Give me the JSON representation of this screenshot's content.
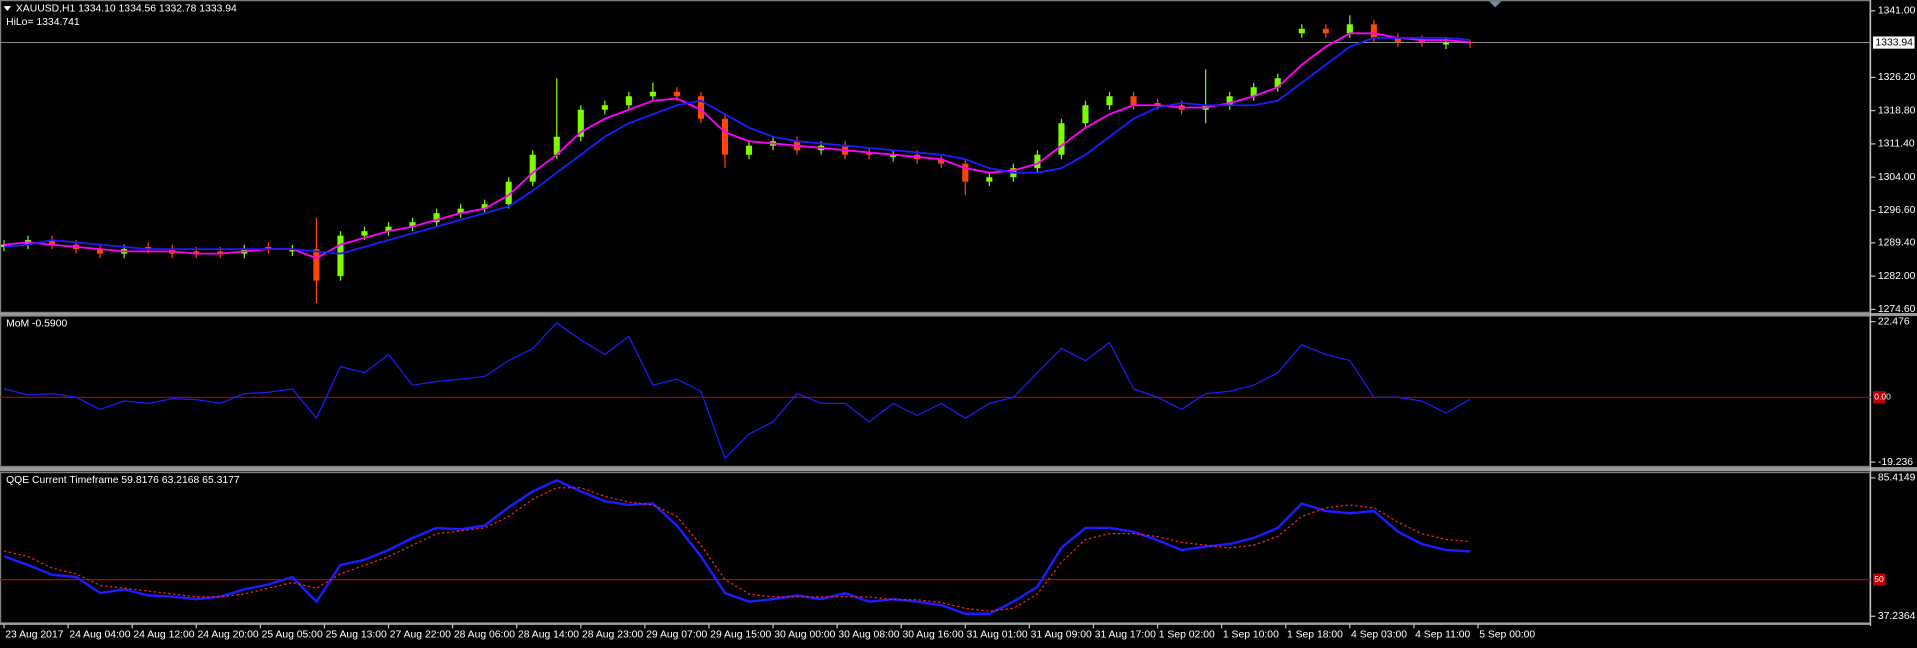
{
  "chart_data": [
    {
      "type": "candlestick",
      "title": "XAUUSD,H1  1334.10 1334.56 1332.78 1333.94",
      "subtitle": "HiLo= 1334.741",
      "up_color": "#7cfc00",
      "down_color": "#ff4500",
      "x": [
        0,
        3,
        6,
        9,
        12,
        15,
        18,
        21,
        24,
        27,
        30,
        33,
        36,
        39,
        42,
        45,
        48,
        51,
        54,
        57,
        60,
        63,
        66,
        69,
        72,
        75,
        78,
        81,
        84,
        87,
        90,
        93,
        96,
        99,
        102,
        105,
        108,
        111,
        114,
        117,
        120,
        123,
        126,
        129,
        132,
        135,
        138,
        141,
        144,
        147,
        150,
        153,
        156,
        159,
        162,
        165,
        168,
        171,
        174,
        177,
        180,
        183
      ],
      "open": [
        1288.5,
        1289,
        1290,
        1289,
        1288,
        1287,
        1288.5,
        1288,
        1287.5,
        1287.5,
        1287,
        1288.5,
        1287.5,
        1288,
        1282,
        1291,
        1292,
        1293,
        1294,
        1296,
        1297,
        1298,
        1303,
        1309,
        1313,
        1319,
        1320,
        1322,
        1323,
        1322,
        1317,
        1309,
        1311,
        1312,
        1310,
        1311,
        1309.5,
        1308.5,
        1309,
        1308,
        1307,
        1303,
        1304,
        1306,
        1309,
        1316,
        1320,
        1322,
        1320.5,
        1320,
        1319,
        1320,
        1322,
        1324,
        1336,
        1337,
        1336,
        1338,
        1335,
        1334.5,
        1333.5,
        1334.1
      ],
      "high": [
        1290,
        1291,
        1291,
        1290,
        1289,
        1289,
        1289.5,
        1289,
        1288.5,
        1288.5,
        1289,
        1289.5,
        1289,
        1295,
        1292,
        1293,
        1294,
        1295,
        1297,
        1298,
        1299,
        1304,
        1310,
        1326,
        1320,
        1321,
        1323,
        1325,
        1324,
        1323,
        1318,
        1312,
        1313,
        1313,
        1312,
        1312,
        1310.5,
        1310,
        1310,
        1309,
        1308,
        1305,
        1307,
        1310,
        1317,
        1321,
        1323,
        1323,
        1321.5,
        1321,
        1328,
        1323,
        1325,
        1327,
        1338,
        1338,
        1340,
        1339,
        1336,
        1335.5,
        1335,
        1334.56
      ],
      "low": [
        1287.5,
        1288,
        1288,
        1287,
        1286,
        1286,
        1287,
        1286,
        1286,
        1286,
        1286,
        1287,
        1286.5,
        1276,
        1281,
        1290,
        1291,
        1292,
        1293,
        1295,
        1296,
        1297,
        1302,
        1308,
        1312,
        1318,
        1319,
        1321,
        1321,
        1316,
        1306,
        1308,
        1310,
        1309,
        1309,
        1308,
        1308,
        1307.5,
        1307,
        1306,
        1300,
        1302,
        1303,
        1305,
        1308,
        1315,
        1319,
        1319,
        1319,
        1318,
        1316,
        1319,
        1321,
        1323,
        1335,
        1335,
        1335,
        1334,
        1333,
        1333,
        1332.5,
        1332.78
      ],
      "close": [
        1289,
        1290,
        1289,
        1288,
        1287,
        1288,
        1288,
        1287,
        1287,
        1287,
        1288,
        1288,
        1288,
        1281,
        1291,
        1292,
        1293,
        1294,
        1296,
        1297,
        1298,
        1303,
        1309,
        1313,
        1319,
        1320,
        1322,
        1323,
        1322,
        1317,
        1309,
        1311,
        1312,
        1310,
        1311,
        1309,
        1309,
        1309,
        1308,
        1307,
        1303,
        1304,
        1306,
        1309,
        1316,
        1320,
        1322,
        1320,
        1320,
        1319,
        1320,
        1322,
        1324,
        1326,
        1337,
        1336,
        1338,
        1335,
        1334,
        1334,
        1334,
        1333.94
      ],
      "overlays": [
        {
          "color": "#ff00ff",
          "values": [
            1289,
            1289.5,
            1289,
            1288.5,
            1288,
            1287.5,
            1287.5,
            1287.5,
            1287,
            1287,
            1287.5,
            1288,
            1288,
            1286,
            1289,
            1290.5,
            1292,
            1293,
            1294.5,
            1296,
            1297,
            1300,
            1305,
            1309,
            1314,
            1317,
            1319,
            1321,
            1321.5,
            1319,
            1314,
            1312,
            1311.5,
            1311,
            1310.5,
            1310,
            1309.5,
            1309,
            1308.5,
            1308,
            1306,
            1305,
            1305.5,
            1307,
            1311,
            1315,
            1318,
            1320,
            1320,
            1319.5,
            1319.5,
            1320.5,
            1322,
            1324,
            1329,
            1333,
            1336,
            1336,
            1335,
            1334.5,
            1334.5,
            1334
          ]
        },
        {
          "color": "#1c1cff",
          "values": [
            1288.5,
            1289,
            1290,
            1289.5,
            1289,
            1288.5,
            1288,
            1288,
            1288,
            1288,
            1288,
            1288,
            1288,
            1287.5,
            1287,
            1288.5,
            1290,
            1291.5,
            1293,
            1294.5,
            1296,
            1297.5,
            1301,
            1305,
            1309,
            1313,
            1316,
            1318,
            1320,
            1321,
            1318,
            1315,
            1313,
            1312,
            1311.5,
            1311,
            1310.5,
            1310,
            1309.5,
            1309,
            1308,
            1306,
            1305,
            1305,
            1306,
            1309,
            1313,
            1317,
            1319.5,
            1320.5,
            1320,
            1320,
            1320,
            1321,
            1325,
            1329,
            1333,
            1335,
            1335,
            1335,
            1335,
            1334.5
          ]
        }
      ],
      "current_price": 1333.94,
      "xlim": [
        -0.5,
        233
      ],
      "ylim": [
        1273.8,
        1343.4
      ],
      "yticks": [
        {
          "value": 1341,
          "label": "1341.00"
        },
        {
          "value": 1326.2,
          "label": "1326.20"
        },
        {
          "value": 1318.8,
          "label": "1318.80"
        },
        {
          "value": 1311.4,
          "label": "1311.40"
        },
        {
          "value": 1304,
          "label": "1304.00"
        },
        {
          "value": 1296.6,
          "label": "1296.60"
        },
        {
          "value": 1289.4,
          "label": "1289.40"
        },
        {
          "value": 1282,
          "label": "1282.00"
        },
        {
          "value": 1274.6,
          "label": "1274.60"
        }
      ]
    },
    {
      "type": "line",
      "title": "MoM  -0.5900",
      "x": [
        0,
        3,
        6,
        9,
        12,
        15,
        18,
        21,
        24,
        27,
        30,
        33,
        36,
        39,
        42,
        45,
        48,
        51,
        54,
        57,
        60,
        63,
        66,
        69,
        72,
        75,
        78,
        81,
        84,
        87,
        90,
        93,
        96,
        99,
        102,
        105,
        108,
        111,
        114,
        117,
        120,
        123,
        126,
        129,
        132,
        135,
        138,
        141,
        144,
        147,
        150,
        153,
        156,
        159,
        162,
        165,
        168,
        171,
        174,
        177,
        180,
        183
      ],
      "series": [
        {
          "color": "#1c1cff",
          "width": 1,
          "style": "solid",
          "values": [
            2.5,
            0.7,
            1.1,
            0,
            -3.6,
            -1.1,
            -1.8,
            -0.4,
            -0.7,
            -1.8,
            1.1,
            1.5,
            2.5,
            -6.2,
            9.1,
            7.3,
            12.7,
            3.6,
            4.7,
            5.4,
            6.2,
            10.9,
            14.5,
            22.1,
            17.0,
            12.7,
            18.1,
            3.6,
            5.4,
            1.8,
            -18.1,
            -10.9,
            -7.3,
            1.1,
            -1.8,
            -1.8,
            -7.3,
            -1.8,
            -5.4,
            -1.8,
            -6.2,
            -1.8,
            0,
            7.3,
            14.5,
            10.9,
            16.3,
            2.5,
            0,
            -3.6,
            1.1,
            1.8,
            3.6,
            7.3,
            15.6,
            12.7,
            10.9,
            0,
            0,
            -1.1,
            -4.7,
            -0.59
          ]
        }
      ],
      "levels": [
        {
          "value": 0,
          "label": "0.00"
        }
      ],
      "level_color": "#c00000",
      "xlim": [
        -0.5,
        233
      ],
      "ylim": [
        -20.7,
        24.3
      ],
      "yticks": [
        22.476,
        -19.236
      ]
    },
    {
      "type": "line",
      "title": "QQE Current Timeframe 59.8176 63.2168 65.3177",
      "x": [
        0,
        3,
        6,
        9,
        12,
        15,
        18,
        21,
        24,
        27,
        30,
        33,
        36,
        39,
        42,
        45,
        48,
        51,
        54,
        57,
        60,
        63,
        66,
        69,
        72,
        75,
        78,
        81,
        84,
        87,
        90,
        93,
        96,
        99,
        102,
        105,
        108,
        111,
        114,
        117,
        120,
        123,
        126,
        129,
        132,
        135,
        138,
        141,
        144,
        147,
        150,
        153,
        156,
        159,
        162,
        165,
        168,
        171,
        174,
        177,
        180,
        183
      ],
      "series": [
        {
          "color": "#1c1cff",
          "width": 2,
          "style": "solid",
          "values": [
            58.1,
            55.1,
            51.7,
            50.9,
            45.3,
            46.6,
            44.5,
            44.1,
            43.2,
            44.1,
            46.6,
            48.3,
            50.9,
            42.3,
            55.1,
            56.9,
            60.3,
            64.5,
            68.0,
            67.5,
            68.8,
            75.2,
            80.7,
            84.6,
            80.7,
            77.3,
            76.0,
            76.5,
            68.8,
            58.1,
            45.3,
            42.3,
            43.2,
            44.5,
            43.2,
            45.3,
            42.3,
            43.2,
            42.3,
            41.1,
            38.1,
            38.1,
            42.3,
            47.5,
            61.1,
            68.0,
            68.0,
            66.7,
            63.7,
            60.3,
            61.5,
            62.4,
            64.5,
            68.0,
            76.5,
            73.9,
            73.1,
            73.9,
            66.7,
            62.4,
            60.3,
            59.8176
          ]
        },
        {
          "color": "#ff2020",
          "width": 1,
          "style": "dotted",
          "values": [
            60,
            58,
            54,
            52,
            48,
            47,
            46,
            45,
            44,
            44,
            45,
            47,
            49,
            47,
            52,
            55,
            58,
            62,
            66,
            67,
            68,
            72,
            78,
            82,
            82,
            79,
            77,
            76,
            72,
            62,
            50,
            45,
            44,
            44,
            44,
            44,
            44,
            43,
            43,
            42,
            40,
            39,
            40,
            45,
            56,
            64,
            66,
            66,
            65,
            63,
            62,
            61,
            62,
            65,
            72,
            75,
            76,
            75,
            70,
            66,
            64,
            63.2168
          ]
        }
      ],
      "levels": [
        {
          "value": 50,
          "label": "50"
        }
      ],
      "level_color": "#c00000",
      "xlim": [
        -0.5,
        233
      ],
      "ylim": [
        34.7,
        87.5
      ],
      "yticks": [
        85.4149,
        37.2364
      ],
      "xticks": [
        {
          "value": 0,
          "label": "23 Aug 2017"
        },
        {
          "value": 8,
          "label": "24 Aug 04:00"
        },
        {
          "value": 16,
          "label": "24 Aug 12:00"
        },
        {
          "value": 24,
          "label": "24 Aug 20:00"
        },
        {
          "value": 32,
          "label": "25 Aug 05:00"
        },
        {
          "value": 40,
          "label": "25 Aug 13:00"
        },
        {
          "value": 48,
          "label": "27 Aug 22:00"
        },
        {
          "value": 56,
          "label": "28 Aug 06:00"
        },
        {
          "value": 64,
          "label": "28 Aug 14:00"
        },
        {
          "value": 72,
          "label": "28 Aug 23:00"
        },
        {
          "value": 80,
          "label": "29 Aug 07:00"
        },
        {
          "value": 88,
          "label": "29 Aug 15:00"
        },
        {
          "value": 96,
          "label": "30 Aug 00:00"
        },
        {
          "value": 104,
          "label": "30 Aug 08:00"
        },
        {
          "value": 112,
          "label": "30 Aug 16:00"
        },
        {
          "value": 120,
          "label": "31 Aug 01:00"
        },
        {
          "value": 128,
          "label": "31 Aug 09:00"
        },
        {
          "value": 136,
          "label": "31 Aug 17:00"
        },
        {
          "value": 144,
          "label": "1 Sep 02:00"
        },
        {
          "value": 152,
          "label": "1 Sep 10:00"
        },
        {
          "value": 160,
          "label": "1 Sep 18:00"
        },
        {
          "value": 168,
          "label": "4 Sep 03:00"
        },
        {
          "value": 176,
          "label": "4 Sep 11:00"
        },
        {
          "value": 184,
          "label": "5 Sep 00:00"
        }
      ]
    }
  ]
}
